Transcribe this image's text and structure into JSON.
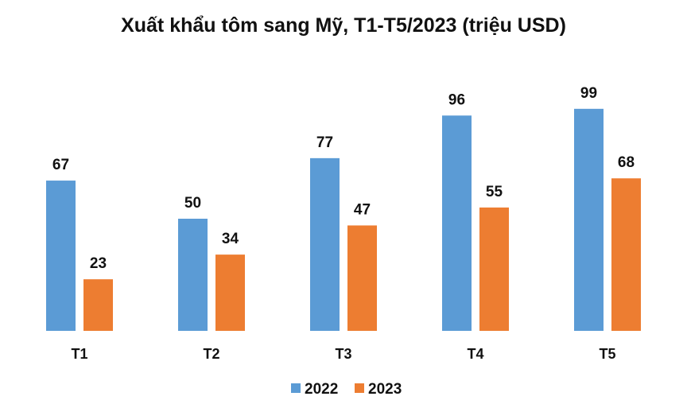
{
  "chart_data": {
    "type": "bar",
    "title": "Xuất khẩu tôm sang Mỹ, T1-T5/2023 (triệu USD)",
    "xlabel": "",
    "ylabel": "",
    "categories": [
      "T1",
      "T2",
      "T3",
      "T4",
      "T5"
    ],
    "series": [
      {
        "name": "2022",
        "color": "#5b9bd5",
        "values": [
          67,
          50,
          77,
          96,
          99
        ]
      },
      {
        "name": "2023",
        "color": "#ed7d31",
        "values": [
          23,
          34,
          47,
          55,
          68
        ]
      }
    ],
    "ylim": [
      0,
      100
    ],
    "grid": false,
    "legend": "bottom-center",
    "data_labels": true
  }
}
